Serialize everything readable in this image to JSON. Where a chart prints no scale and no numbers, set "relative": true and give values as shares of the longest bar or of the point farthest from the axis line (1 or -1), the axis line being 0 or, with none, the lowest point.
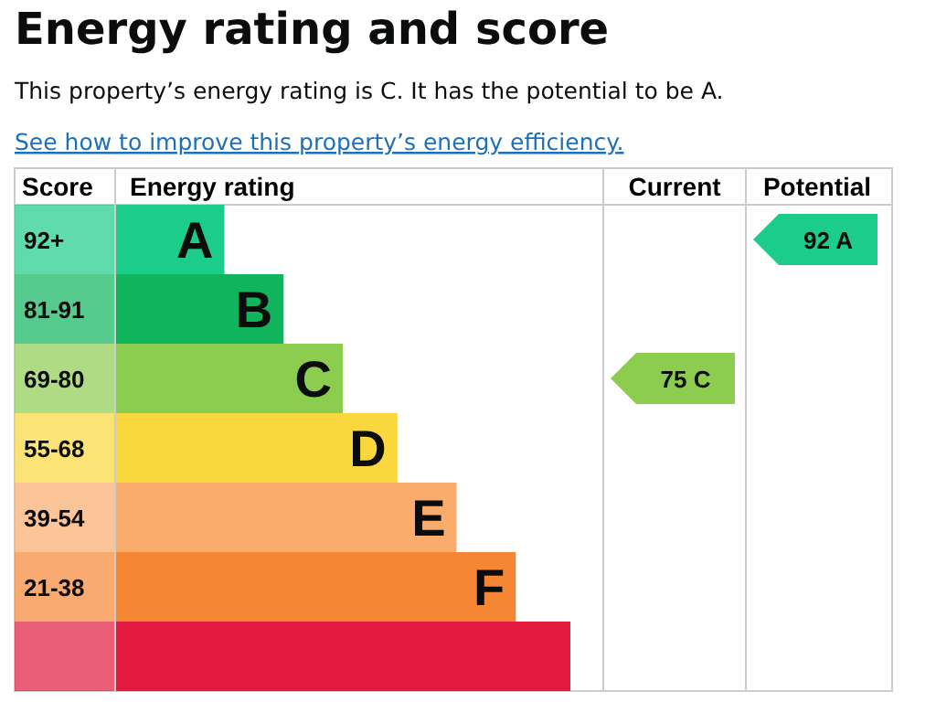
{
  "chart_data": {
    "type": "bar",
    "orientation": "horizontal",
    "relative": true,
    "title": "Energy rating and score",
    "subtitle": "This property’s energy rating is C. It has the potential to be A.",
    "xlabel": "Energy rating",
    "ylabel": "Score",
    "categories": [
      "92+",
      "81-91",
      "69-80",
      "55-68",
      "39-54",
      "21-38",
      null
    ],
    "values": [
      0.24,
      0.37,
      0.5,
      0.62,
      0.75,
      0.88,
      1
    ],
    "colors": [
      "#1ccc8a",
      "#0fb45d",
      "#8ccc4f",
      "#fad73c",
      "#f9ac6c",
      "#f58634",
      "#e3193f"
    ],
    "annotations": [
      "See how to improve this property’s energy efficiency.",
      "Current",
      "Potential",
      {
        "text": "A",
        "y": "92+"
      },
      {
        "text": "B",
        "y": "81-91"
      },
      {
        "text": "C",
        "y": "69-80"
      },
      {
        "text": "D",
        "y": "55-68"
      },
      {
        "text": "E",
        "y": "39-54"
      },
      {
        "text": "F",
        "y": "21-38"
      },
      "75 C",
      "92 A"
    ]
  }
}
